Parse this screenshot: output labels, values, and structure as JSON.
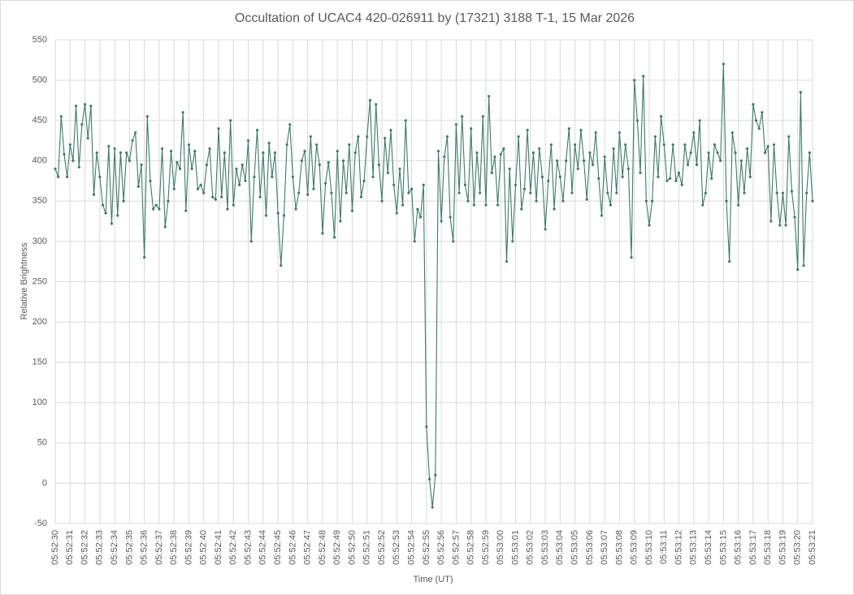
{
  "chart_data": {
    "type": "line",
    "title": "Occultation of UCAC4 420-026911 by (17321) 3188 T-1, 15 Mar 2026",
    "x_label": "Time (UT)",
    "y_label": "Relative Brightness",
    "color": "#3f7a65",
    "grid": true,
    "ylim": [
      -50,
      550
    ],
    "yticks": [
      -50,
      0,
      50,
      100,
      150,
      200,
      250,
      300,
      350,
      400,
      450,
      500,
      550
    ],
    "categories": [
      "05:52:30",
      null,
      null,
      null,
      null,
      "05:52:31",
      null,
      null,
      null,
      null,
      "05:52:32",
      null,
      null,
      null,
      null,
      "05:52:33",
      null,
      null,
      null,
      null,
      "05:52:34",
      null,
      null,
      null,
      null,
      "05:52:35",
      null,
      null,
      null,
      null,
      "05:52:36",
      null,
      null,
      null,
      null,
      "05:52:37",
      null,
      null,
      null,
      null,
      "05:52:38",
      null,
      null,
      null,
      null,
      "05:52:39",
      null,
      null,
      null,
      null,
      "05:52:40",
      null,
      null,
      null,
      null,
      "05:52:41",
      null,
      null,
      null,
      null,
      "05:52:42",
      null,
      null,
      null,
      null,
      "05:52:43",
      null,
      null,
      null,
      null,
      "05:52:44",
      null,
      null,
      null,
      null,
      "05:52:45",
      null,
      null,
      null,
      null,
      "05:52:46",
      null,
      null,
      null,
      null,
      "05:52:47",
      null,
      null,
      null,
      null,
      "05:52:48",
      null,
      null,
      null,
      null,
      "05:52:49",
      null,
      null,
      null,
      null,
      "05:52:50",
      null,
      null,
      null,
      null,
      "05:52:51",
      null,
      null,
      null,
      null,
      "05:52:52",
      null,
      null,
      null,
      null,
      "05:52:53",
      null,
      null,
      null,
      null,
      "05:52:54",
      null,
      null,
      null,
      null,
      "05:52:55",
      null,
      null,
      null,
      null,
      "05:52:56",
      null,
      null,
      null,
      null,
      "05:52:57",
      null,
      null,
      null,
      null,
      "05:52:58",
      null,
      null,
      null,
      null,
      "05:52:59",
      null,
      null,
      null,
      null,
      "05:53:00",
      null,
      null,
      null,
      null,
      "05:53:01",
      null,
      null,
      null,
      null,
      "05:53:02",
      null,
      null,
      null,
      null,
      "05:53:03",
      null,
      null,
      null,
      null,
      "05:53:04",
      null,
      null,
      null,
      null,
      "05:53:05",
      null,
      null,
      null,
      null,
      "05:53:06",
      null,
      null,
      null,
      null,
      "05:53:07",
      null,
      null,
      null,
      null,
      "05:53:08",
      null,
      null,
      null,
      null,
      "05:53:09",
      null,
      null,
      null,
      null,
      "05:53:10",
      null,
      null,
      null,
      null,
      "05:53:11",
      null,
      null,
      null,
      null,
      "05:53:12",
      null,
      null,
      null,
      null,
      "05:53:13",
      null,
      null,
      null,
      null,
      "05:53:14",
      null,
      null,
      null,
      null,
      "05:53:15",
      null,
      null,
      null,
      null,
      "05:53:16",
      null,
      null,
      null,
      null,
      "05:53:17",
      null,
      null,
      null,
      null,
      "05:53:18",
      null,
      null,
      null,
      null,
      "05:53:19",
      null,
      null,
      null,
      null,
      "05:53:20",
      null,
      null,
      null,
      null,
      "05:53:21"
    ],
    "values": [
      390,
      380,
      455,
      408,
      380,
      420,
      400,
      468,
      392,
      445,
      470,
      428,
      468,
      358,
      410,
      380,
      345,
      335,
      418,
      322,
      415,
      332,
      410,
      350,
      410,
      400,
      425,
      435,
      368,
      395,
      280,
      455,
      375,
      340,
      345,
      340,
      415,
      318,
      350,
      412,
      365,
      398,
      390,
      460,
      338,
      420,
      390,
      412,
      365,
      370,
      360,
      395,
      415,
      355,
      352,
      440,
      355,
      410,
      340,
      450,
      345,
      390,
      370,
      395,
      375,
      425,
      300,
      380,
      438,
      355,
      410,
      332,
      422,
      380,
      410,
      335,
      270,
      332,
      420,
      445,
      380,
      340,
      360,
      400,
      412,
      358,
      430,
      365,
      420,
      395,
      310,
      372,
      398,
      360,
      305,
      412,
      325,
      400,
      360,
      420,
      338,
      410,
      430,
      355,
      375,
      430,
      475,
      380,
      470,
      395,
      350,
      428,
      385,
      438,
      370,
      335,
      390,
      345,
      450,
      360,
      365,
      300,
      340,
      330,
      370,
      70,
      5,
      -30,
      10,
      412,
      325,
      405,
      430,
      330,
      300,
      445,
      360,
      455,
      370,
      350,
      440,
      345,
      410,
      360,
      455,
      345,
      480,
      385,
      405,
      345,
      408,
      415,
      275,
      390,
      300,
      370,
      430,
      340,
      365,
      438,
      360,
      410,
      350,
      415,
      380,
      315,
      375,
      420,
      340,
      400,
      380,
      350,
      400,
      440,
      360,
      420,
      390,
      438,
      400,
      352,
      410,
      395,
      435,
      378,
      332,
      405,
      360,
      345,
      415,
      360,
      435,
      380,
      420,
      390,
      280,
      500,
      450,
      385,
      505,
      350,
      320,
      350,
      430,
      380,
      455,
      420,
      375,
      378,
      420,
      375,
      385,
      370,
      420,
      395,
      410,
      435,
      395,
      450,
      345,
      360,
      410,
      378,
      420,
      410,
      400,
      520,
      350,
      275,
      435,
      410,
      345,
      400,
      360,
      415,
      380,
      470,
      450,
      440,
      460,
      410,
      418,
      325,
      420,
      360,
      320,
      360,
      320,
      430,
      362,
      330,
      265,
      485,
      270,
      360,
      410,
      350
    ]
  }
}
